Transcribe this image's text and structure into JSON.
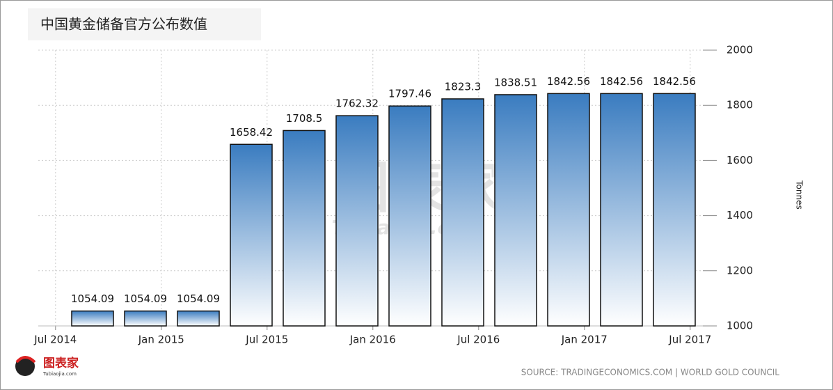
{
  "chart_data": {
    "type": "bar",
    "title": "中国黄金储备官方公布数值",
    "categories": [
      null,
      null,
      null,
      null,
      null,
      null,
      null,
      null,
      null,
      null,
      null,
      null
    ],
    "values": [
      1054.09,
      1054.09,
      1054.09,
      1658.42,
      1708.5,
      1762.32,
      1797.46,
      1823.3,
      1838.51,
      1842.56,
      1842.56,
      1842.56
    ],
    "xticks": [
      "Jul 2014",
      "Jan 2015",
      "Jul 2015",
      "Jan 2016",
      "Jul 2016",
      "Jan 2017",
      "Jul 2017"
    ],
    "ylim": [
      1000,
      2000
    ],
    "yticks": [
      1000,
      1200,
      1400,
      1600,
      1800,
      2000
    ],
    "y_axis_label": "Tonnes",
    "y_axis_side": "right",
    "grid": true,
    "color": "#3a7cc0",
    "source": "SOURCE: TRADINGECONOMICS.COM  |  WORLD GOLD COUNCIL",
    "watermark": "图表家",
    "watermark_url": "Tubiaojia.com"
  }
}
